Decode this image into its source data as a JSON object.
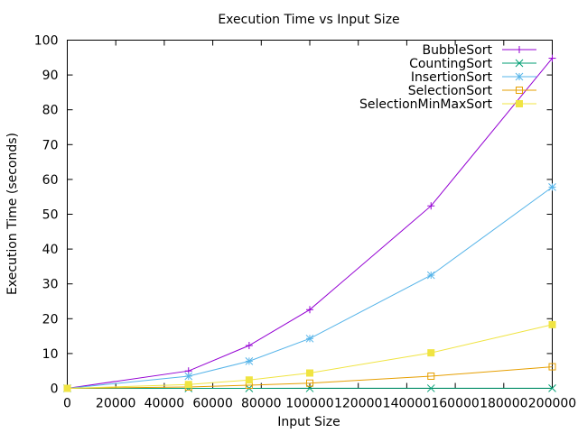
{
  "chart_data": {
    "type": "line",
    "title": "Execution Time vs Input Size",
    "xlabel": "Input Size",
    "ylabel": "Execution Time (seconds)",
    "xlim": [
      0,
      200000
    ],
    "ylim": [
      0,
      100
    ],
    "xticks": [
      0,
      20000,
      40000,
      60000,
      80000,
      100000,
      120000,
      140000,
      160000,
      180000,
      200000
    ],
    "yticks": [
      0,
      10,
      20,
      30,
      40,
      50,
      60,
      70,
      80,
      90,
      100
    ],
    "legend_position": "top-right",
    "grid": false,
    "x": [
      0,
      50000,
      75000,
      100000,
      150000,
      200000
    ],
    "series": [
      {
        "name": "BubbleSort",
        "color": "#9400d3",
        "marker": "plus",
        "values": [
          0,
          5,
          12.3,
          22.6,
          52.4,
          94.8
        ]
      },
      {
        "name": "CountingSort",
        "color": "#009e73",
        "marker": "cross",
        "values": [
          0,
          0.01,
          0.01,
          0.02,
          0.02,
          0.03
        ]
      },
      {
        "name": "InsertionSort",
        "color": "#56b4e9",
        "marker": "star",
        "values": [
          0,
          3.5,
          7.8,
          14.3,
          32.5,
          57.8
        ]
      },
      {
        "name": "SelectionSort",
        "color": "#e69f00",
        "marker": "open-square",
        "values": [
          0,
          0.4,
          0.9,
          1.5,
          3.5,
          6.2
        ]
      },
      {
        "name": "SelectionMinMaxSort",
        "color": "#f0e442",
        "marker": "filled-square",
        "values": [
          0,
          1.1,
          2.4,
          4.4,
          10.2,
          18.3
        ]
      }
    ]
  }
}
